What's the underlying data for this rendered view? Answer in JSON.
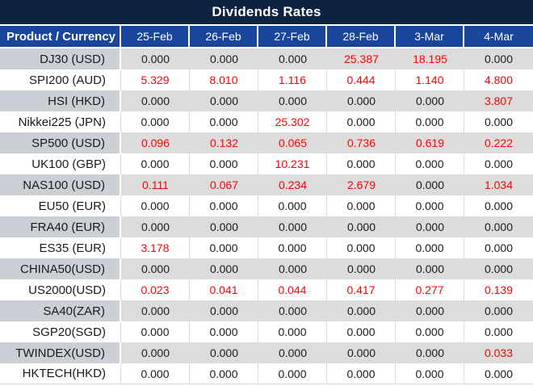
{
  "title": "Dividends Rates",
  "columns": [
    "Product / Currency",
    "25-Feb",
    "26-Feb",
    "27-Feb",
    "28-Feb",
    "3-Mar",
    "4-Mar"
  ],
  "rows": [
    {
      "product": "DJ30 (USD)",
      "values": [
        "0.000",
        "0.000",
        "0.000",
        "25.387",
        "18.195",
        "0.000"
      ],
      "red": [
        0,
        0,
        0,
        1,
        1,
        0
      ]
    },
    {
      "product": "SPI200 (AUD)",
      "values": [
        "5.329",
        "8.010",
        "1.116",
        "0.444",
        "1.140",
        "4.800"
      ],
      "red": [
        1,
        1,
        1,
        1,
        1,
        1
      ]
    },
    {
      "product": "HSI (HKD)",
      "values": [
        "0.000",
        "0.000",
        "0.000",
        "0.000",
        "0.000",
        "3.807"
      ],
      "red": [
        0,
        0,
        0,
        0,
        0,
        1
      ]
    },
    {
      "product": "Nikkei225 (JPN)",
      "values": [
        "0.000",
        "0.000",
        "25.302",
        "0.000",
        "0.000",
        "0.000"
      ],
      "red": [
        0,
        0,
        1,
        0,
        0,
        0
      ]
    },
    {
      "product": "SP500 (USD)",
      "values": [
        "0.096",
        "0.132",
        "0.065",
        "0.736",
        "0.619",
        "0.222"
      ],
      "red": [
        1,
        1,
        1,
        1,
        1,
        1
      ]
    },
    {
      "product": "UK100 (GBP)",
      "values": [
        "0.000",
        "0.000",
        "10.231",
        "0.000",
        "0.000",
        "0.000"
      ],
      "red": [
        0,
        0,
        1,
        0,
        0,
        0
      ]
    },
    {
      "product": "NAS100 (USD)",
      "values": [
        "0.111",
        "0.067",
        "0.234",
        "2.679",
        "0.000",
        "1.034"
      ],
      "red": [
        1,
        1,
        1,
        1,
        0,
        1
      ]
    },
    {
      "product": "EU50 (EUR)",
      "values": [
        "0.000",
        "0.000",
        "0.000",
        "0.000",
        "0.000",
        "0.000"
      ],
      "red": [
        0,
        0,
        0,
        0,
        0,
        0
      ]
    },
    {
      "product": "FRA40 (EUR)",
      "values": [
        "0.000",
        "0.000",
        "0.000",
        "0.000",
        "0.000",
        "0.000"
      ],
      "red": [
        0,
        0,
        0,
        0,
        0,
        0
      ]
    },
    {
      "product": "ES35 (EUR)",
      "values": [
        "3.178",
        "0.000",
        "0.000",
        "0.000",
        "0.000",
        "0.000"
      ],
      "red": [
        1,
        0,
        0,
        0,
        0,
        0
      ]
    },
    {
      "product": "CHINA50(USD)",
      "values": [
        "0.000",
        "0.000",
        "0.000",
        "0.000",
        "0.000",
        "0.000"
      ],
      "red": [
        0,
        0,
        0,
        0,
        0,
        0
      ]
    },
    {
      "product": "US2000(USD)",
      "values": [
        "0.023",
        "0.041",
        "0.044",
        "0.417",
        "0.277",
        "0.139"
      ],
      "red": [
        1,
        1,
        1,
        1,
        1,
        1
      ]
    },
    {
      "product": "SA40(ZAR)",
      "values": [
        "0.000",
        "0.000",
        "0.000",
        "0.000",
        "0.000",
        "0.000"
      ],
      "red": [
        0,
        0,
        0,
        0,
        0,
        0
      ]
    },
    {
      "product": "SGP20(SGD)",
      "values": [
        "0.000",
        "0.000",
        "0.000",
        "0.000",
        "0.000",
        "0.000"
      ],
      "red": [
        0,
        0,
        0,
        0,
        0,
        0
      ]
    },
    {
      "product": "TWINDEX(USD)",
      "values": [
        "0.000",
        "0.000",
        "0.000",
        "0.000",
        "0.000",
        "0.033"
      ],
      "red": [
        0,
        0,
        0,
        0,
        0,
        1
      ]
    },
    {
      "product": "HKTECH(HKD)",
      "values": [
        "0.000",
        "0.000",
        "0.000",
        "0.000",
        "0.000",
        "0.000"
      ],
      "red": [
        0,
        0,
        0,
        0,
        0,
        0
      ]
    }
  ],
  "colors": {
    "title_bg": "#0E2342",
    "header_bg": "#1A459C",
    "row_gray_product": "#CCD0D6",
    "row_gray_data": "#DCDCDC",
    "border_light": "#DBDBDB",
    "value_red": "#FF0000",
    "value_black": "#1A1A1A"
  }
}
